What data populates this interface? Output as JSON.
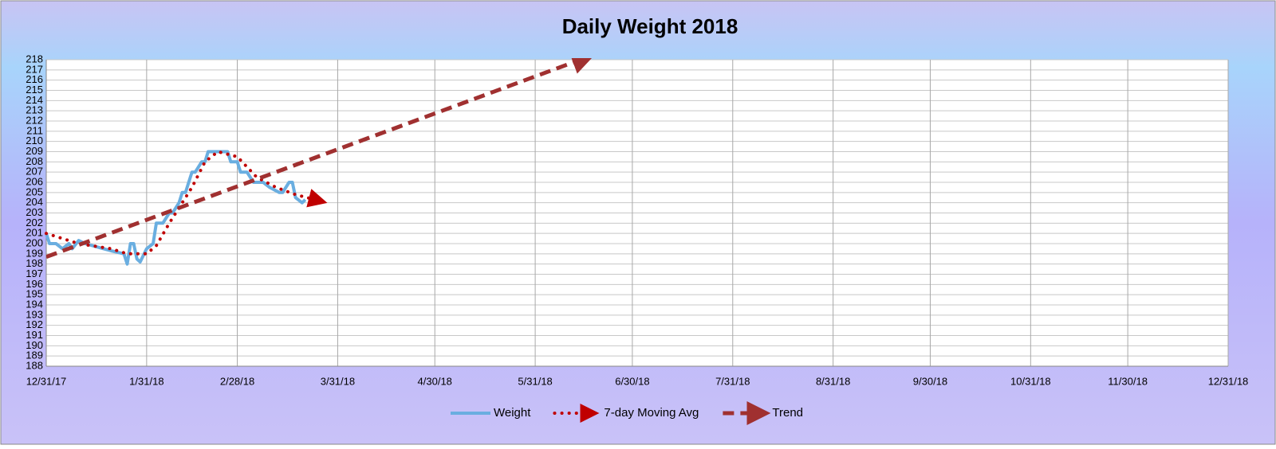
{
  "chart_data": {
    "type": "line",
    "title": "Daily Weight 2018",
    "xlim": [
      "12/31/17",
      "12/31/18"
    ],
    "xticks": [
      "12/31/17",
      "1/31/18",
      "2/28/18",
      "3/31/18",
      "4/30/18",
      "5/31/18",
      "6/30/18",
      "7/31/18",
      "8/31/18",
      "9/30/18",
      "10/31/18",
      "11/30/18",
      "12/31/18"
    ],
    "ylim": [
      188,
      218
    ],
    "yticks": [
      188,
      189,
      190,
      191,
      192,
      193,
      194,
      195,
      196,
      197,
      198,
      199,
      200,
      201,
      202,
      203,
      204,
      205,
      206,
      207,
      208,
      209,
      210,
      211,
      212,
      213,
      214,
      215,
      216,
      217,
      218
    ],
    "grid": true,
    "series": [
      {
        "name": "Weight",
        "color": "#6aaee0",
        "style": "solid",
        "x": [
          "12/31/17",
          "1/1/18",
          "1/3/18",
          "1/5/18",
          "1/7/18",
          "1/8/18",
          "1/10/18",
          "1/12/18",
          "1/20/18",
          "1/24/18",
          "1/25/18",
          "1/26/18",
          "1/27/18",
          "1/28/18",
          "1/29/18",
          "1/31/18",
          "2/2/18",
          "2/3/18",
          "2/5/18",
          "2/7/18",
          "2/8/18",
          "2/10/18",
          "2/11/18",
          "2/12/18",
          "2/14/18",
          "2/15/18",
          "2/17/18",
          "2/18/18",
          "2/19/18",
          "2/25/18",
          "2/26/18",
          "2/28/18",
          "3/1/18",
          "3/3/18",
          "3/5/18",
          "3/8/18",
          "3/10/18",
          "3/13/18",
          "3/14/18",
          "3/16/18",
          "3/17/18",
          "3/18/18",
          "3/20/18",
          "3/21/18"
        ],
        "values": [
          201,
          200,
          200,
          199.5,
          200,
          199.5,
          200.3,
          200,
          199.3,
          199,
          198,
          200,
          200,
          198.5,
          198.2,
          199.5,
          200,
          202,
          202,
          203,
          203,
          204,
          205,
          205,
          207,
          207,
          208,
          208,
          209,
          209,
          208,
          208,
          207,
          207,
          206,
          206,
          205.5,
          205,
          205,
          206,
          206,
          204.5,
          204,
          204.3
        ]
      },
      {
        "name": "7-day Moving Avg",
        "color": "#c00000",
        "style": "dotted",
        "x": [
          "12/31/17",
          "1/10/18",
          "1/20/18",
          "1/25/18",
          "1/31/18",
          "2/3/18",
          "2/7/18",
          "2/10/18",
          "2/14/18",
          "2/18/18",
          "2/22/18",
          "2/28/18",
          "3/6/18",
          "3/12/18",
          "3/18/18",
          "3/24/18"
        ],
        "values": [
          201,
          200,
          199.5,
          199,
          199,
          199.8,
          202,
          203.5,
          205.5,
          208,
          209,
          208.5,
          206.5,
          205.5,
          204.8,
          204.3
        ]
      },
      {
        "name": "Trend",
        "color": "#a03030",
        "style": "dashed",
        "x": [
          "12/31/17",
          "6/14/18"
        ],
        "values": [
          198.7,
          218
        ]
      }
    ]
  }
}
